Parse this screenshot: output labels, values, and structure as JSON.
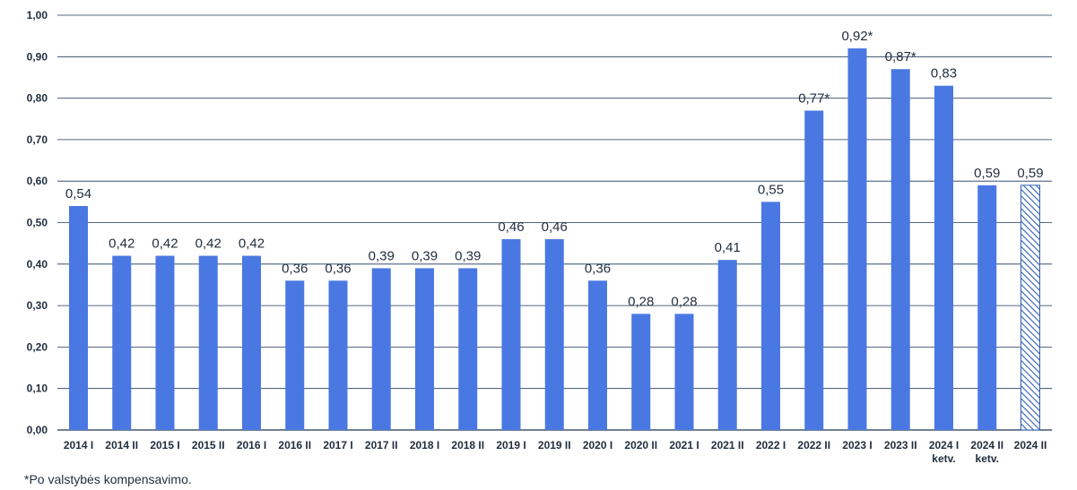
{
  "chart_data": {
    "type": "bar",
    "categories": [
      [
        "2014 I"
      ],
      [
        "2014 II"
      ],
      [
        "2015 I"
      ],
      [
        "2015 II"
      ],
      [
        "2016 I"
      ],
      [
        "2016 II"
      ],
      [
        "2017 I"
      ],
      [
        "2017 II"
      ],
      [
        "2018 I"
      ],
      [
        "2018 II"
      ],
      [
        "2019 I"
      ],
      [
        "2019 II"
      ],
      [
        "2020 I"
      ],
      [
        "2020 II"
      ],
      [
        "2021 I"
      ],
      [
        "2021 II"
      ],
      [
        "2022 I"
      ],
      [
        "2022 II"
      ],
      [
        "2023 I"
      ],
      [
        "2023 II"
      ],
      [
        "2024 I",
        "ketv."
      ],
      [
        "2024 II",
        "ketv."
      ],
      [
        "2024 II"
      ]
    ],
    "values": [
      0.54,
      0.42,
      0.42,
      0.42,
      0.42,
      0.36,
      0.36,
      0.39,
      0.39,
      0.39,
      0.46,
      0.46,
      0.36,
      0.28,
      0.28,
      0.41,
      0.55,
      0.77,
      0.92,
      0.87,
      0.83,
      0.59,
      0.59
    ],
    "data_labels": [
      "0,54",
      "0,42",
      "0,42",
      "0,42",
      "0,42",
      "0,36",
      "0,36",
      "0,39",
      "0,39",
      "0,39",
      "0,46",
      "0,46",
      "0,36",
      "0,28",
      "0,28",
      "0,41",
      "0,55",
      "0,77*",
      "0,92*",
      "0,87*",
      "0,83",
      "0,59",
      "0,59"
    ],
    "hatched": [
      false,
      false,
      false,
      false,
      false,
      false,
      false,
      false,
      false,
      false,
      false,
      false,
      false,
      false,
      false,
      false,
      false,
      false,
      false,
      false,
      false,
      false,
      true
    ],
    "ylim": [
      0,
      1.0
    ],
    "yticks": [
      0,
      0.1,
      0.2,
      0.3,
      0.4,
      0.5,
      0.6,
      0.7,
      0.8,
      0.9,
      1.0
    ],
    "ytick_labels": [
      "0,00",
      "0,10",
      "0,20",
      "0,30",
      "0,40",
      "0,50",
      "0,60",
      "0,70",
      "0,80",
      "0,90",
      "1,00"
    ],
    "grid": true,
    "bar_color": "#4a78e2",
    "hatch_color": "#2f5fb3",
    "grid_color": "#1f3557",
    "text_color": "#1f2d3d"
  },
  "footnote": "*Po valstybės kompensavimo."
}
